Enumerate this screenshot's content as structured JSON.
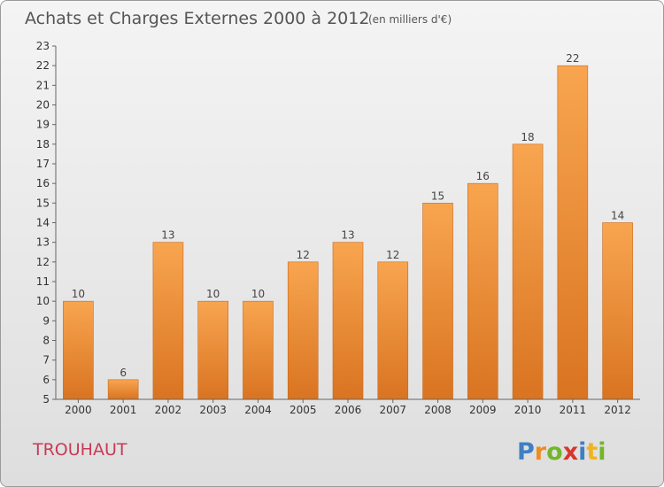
{
  "chart_data": {
    "type": "bar",
    "title": "Achats et Charges Externes 2000 à 2012",
    "unit_label": "(en milliers d'€)",
    "categories": [
      "2000",
      "2001",
      "2002",
      "2003",
      "2004",
      "2005",
      "2006",
      "2007",
      "2008",
      "2009",
      "2010",
      "2011",
      "2012"
    ],
    "values": [
      10,
      6,
      13,
      10,
      10,
      12,
      13,
      12,
      15,
      16,
      18,
      22,
      14
    ],
    "value_labels": [
      "10",
      "6",
      "13",
      "10",
      "10",
      "12",
      "13",
      "12",
      "15",
      "16",
      "18",
      "22",
      "14"
    ],
    "ylim": [
      5,
      23
    ],
    "yticks": [
      "5",
      "6",
      "7",
      "8",
      "9",
      "10",
      "11",
      "12",
      "13",
      "14",
      "15",
      "16",
      "17",
      "18",
      "19",
      "20",
      "21",
      "22",
      "23"
    ],
    "grid": false,
    "bar_color": "#f0953a"
  },
  "commune": "TROUHAUT",
  "logo": {
    "letters": [
      "P",
      "r",
      "o",
      "x",
      "i",
      "t",
      "i"
    ],
    "colors": [
      "#3f7fc4",
      "#f08c1e",
      "#72b62b",
      "#d9352e",
      "#3f7fc4",
      "#f0b41e",
      "#72b62b"
    ]
  }
}
